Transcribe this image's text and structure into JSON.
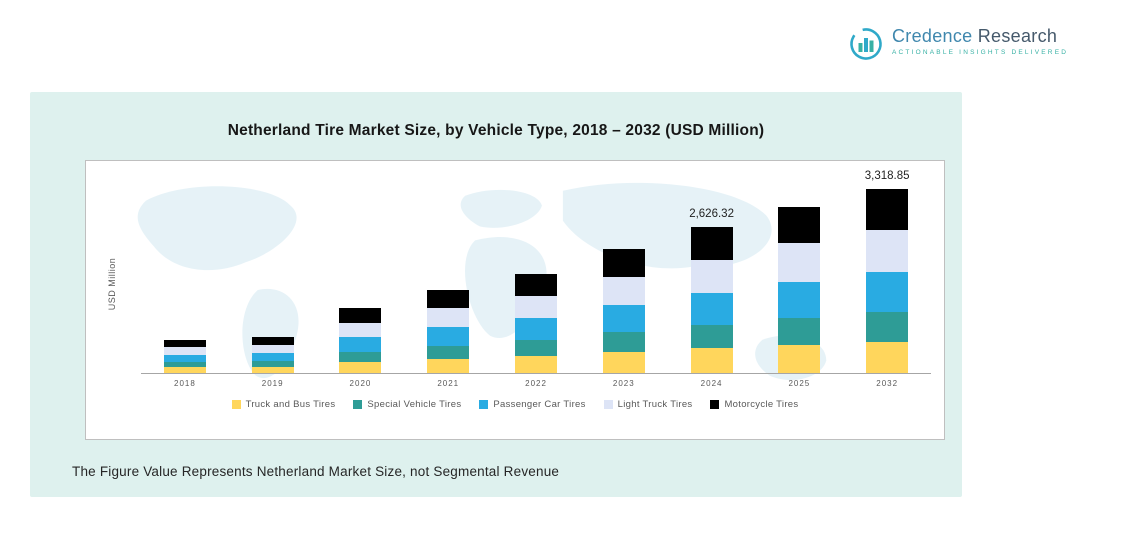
{
  "logo": {
    "brand_primary": "Credence",
    "brand_secondary": " Research",
    "tagline": "Actionable Insights Delivered"
  },
  "panel": {
    "title": "Netherland Tire Market Size, by Vehicle Type, 2018 – 2032 (USD Million)",
    "note": "The Figure Value Represents Netherland Market Size, not Segmental Revenue"
  },
  "chart_data": {
    "type": "bar",
    "stacked": true,
    "title": "Netherland Tire Market Size, by Vehicle Type, 2018 – 2032 (USD Million)",
    "xlabel": "",
    "ylabel": "USD Million",
    "ylim": [
      0,
      3500
    ],
    "grid": false,
    "legend_position": "bottom",
    "categories": [
      "2018",
      "2019",
      "2020",
      "2021",
      "2022",
      "2023",
      "2024",
      "2025",
      "2032"
    ],
    "series": [
      {
        "name": "Truck and Bus Tires",
        "color": "#ffd65c",
        "values": [
          102,
          112,
          199,
          255,
          304,
          379,
          446.0,
          510,
          564.0
        ]
      },
      {
        "name": "Special Vehicle Tires",
        "color": "#2e9c96",
        "values": [
          96,
          106,
          187,
          240,
          286,
          357,
          420.0,
          480,
          531.0
        ]
      },
      {
        "name": "Passenger Car Tires",
        "color": "#29abe2",
        "values": [
          132,
          145,
          257,
          330,
          394,
          491,
          578.0,
          660,
          730.0
        ]
      },
      {
        "name": "Light Truck Tires",
        "color": "#dde4f6",
        "values": [
          138,
          152,
          269,
          345,
          412,
          513,
          604.0,
          690,
          763.0
        ]
      },
      {
        "name": "Motorcycle Tires",
        "color": "#000000",
        "values": [
          132,
          145,
          258,
          330,
          394,
          490,
          578.32,
          660,
          730.85
        ]
      }
    ],
    "totals_estimated": [
      600,
      660,
      1170,
      1500,
      1790,
      2230,
      2626.32,
      3000,
      3318.85
    ],
    "bar_value_labels": [
      "",
      "",
      "",
      "",
      "",
      "",
      "2,626.32",
      "",
      "3,318.85"
    ]
  }
}
